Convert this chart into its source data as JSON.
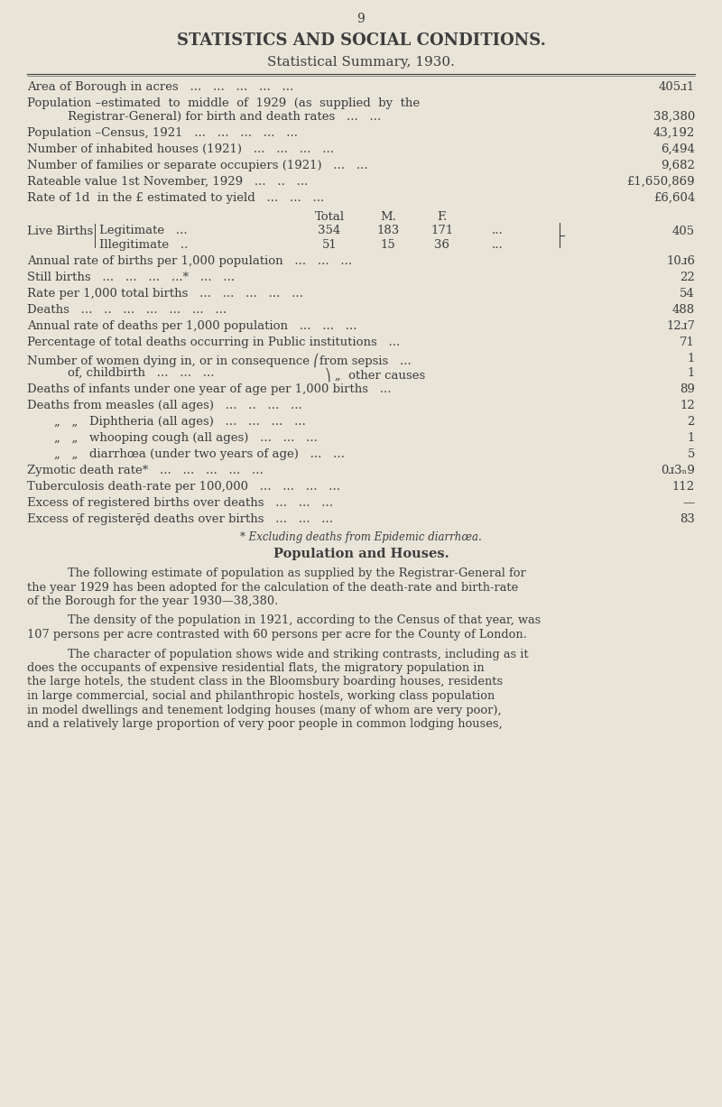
{
  "page_number": "9",
  "title1": "STATISTICS AND SOCIAL CONDITIONS.",
  "title2": "Statistical Summary, 1930.",
  "bg_color": "#e8e4d8",
  "text_color": "#3d3d3d",
  "footnote": "* Excluding deaths from Epidemic diarrhœa.",
  "section_title": "Population and Houses.",
  "paragraph1": "The following estimate of population as supplied by the Registrar-General for\nthe year 1929 has been adopted for the calculation of the death-rate and birth-rate\nof the Borough for the year 1930—38,380.",
  "paragraph2": "The density of the population in 1921, according to the Census of that year, was\n107 persons per acre contrasted with 60 persons per acre for the County of London.",
  "paragraph3": "The character of population shows wide and striking contrasts, including as it\ndoes the occupants of expensive residential flats, the migratory population in\nthe large hotels, the student class in the Bloomsbury boarding houses, residents\nin large commercial, social and philanthropic hostels, working class population\nin model dwellings and tenement lodging houses (many of whom are very poor),\nand a relatively large proportion of very poor people in common lodging houses,"
}
